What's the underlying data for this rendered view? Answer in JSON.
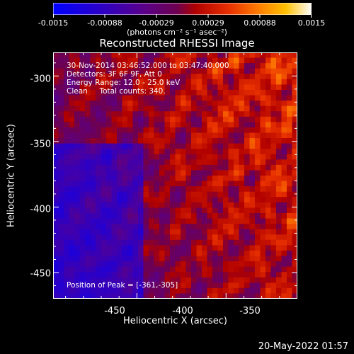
{
  "colorbar": {
    "ticks": [
      "-0.0015",
      "-0.00088",
      "-0.00029",
      "0.00029",
      "0.00088",
      "0.0015"
    ],
    "unit_label": "(photons cm⁻² s⁻¹ asec⁻²)"
  },
  "chart_data": {
    "type": "heatmap",
    "title": "Reconstructed RHESSI Image",
    "xlabel": "Heliocentric X (arcsec)",
    "ylabel": "Heliocentric Y (arcsec)",
    "xlim": [
      -497,
      -360
    ],
    "ylim": [
      -470,
      -282
    ],
    "clim": [
      -0.0015,
      0.0015
    ],
    "x_ticks": [
      "-450",
      "-400",
      "-350"
    ],
    "y_ticks": [
      "-300",
      "-350",
      "-400",
      "-450"
    ],
    "annotations": {
      "time": "30-Nov-2014 03:46:52.000 to 03:47:40.000",
      "detectors": "Detectors: 3F 6F 9F, Att 0",
      "energy": "Energy Range: 12.0 - 25.0 keV",
      "method": "Clean     Total counts: 340.",
      "peak": "Position of Peak = [-361,-305]"
    },
    "peak": {
      "x": -361,
      "y": -305
    }
  },
  "timestamp": "20-May-2022 01:57"
}
